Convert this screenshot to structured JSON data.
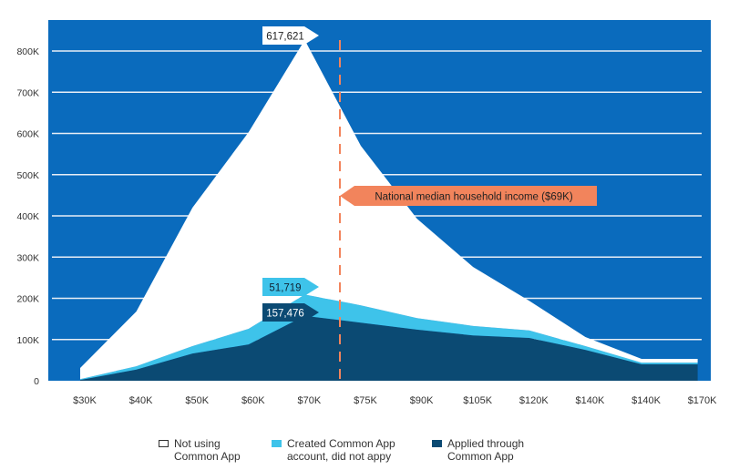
{
  "chart_data": {
    "type": "area",
    "stacked": true,
    "categories": [
      "$30K",
      "$40K",
      "$50K",
      "$60K",
      "$70K",
      "$75K",
      "$90K",
      "$105K",
      "$120K",
      "$140K",
      "$140K",
      "$170K"
    ],
    "series": [
      {
        "name": "Applied through Common App",
        "color": "#0b4a73",
        "values": [
          2000,
          27000,
          66000,
          88000,
          157476,
          141000,
          124000,
          110000,
          104000,
          75000,
          40000,
          null
        ]
      },
      {
        "name": "Created Common App account, did not appy",
        "color": "#3ec3ea",
        "values": [
          2000,
          8000,
          18000,
          38000,
          51719,
          42000,
          28000,
          23000,
          18000,
          9000,
          4000,
          null
        ]
      },
      {
        "name": "Not using Common App",
        "color": "#ffffff",
        "values": [
          27000,
          133000,
          336000,
          477000,
          617621,
          387000,
          241000,
          143000,
          72000,
          22000,
          9000,
          null
        ]
      }
    ],
    "yticks": [
      "0",
      "100K",
      "200K",
      "300K",
      "400K",
      "500K",
      "600K",
      "700K",
      "800K"
    ],
    "ylim": [
      0,
      880000
    ],
    "grid": true,
    "background_color": "#0a6bbd",
    "annotations": {
      "peak_white": "617,621",
      "peak_light": "51,719",
      "peak_dark": "157,476",
      "median": "National median household income ($69K)",
      "median_color": "#f2845c"
    },
    "legend_position": "bottom"
  }
}
